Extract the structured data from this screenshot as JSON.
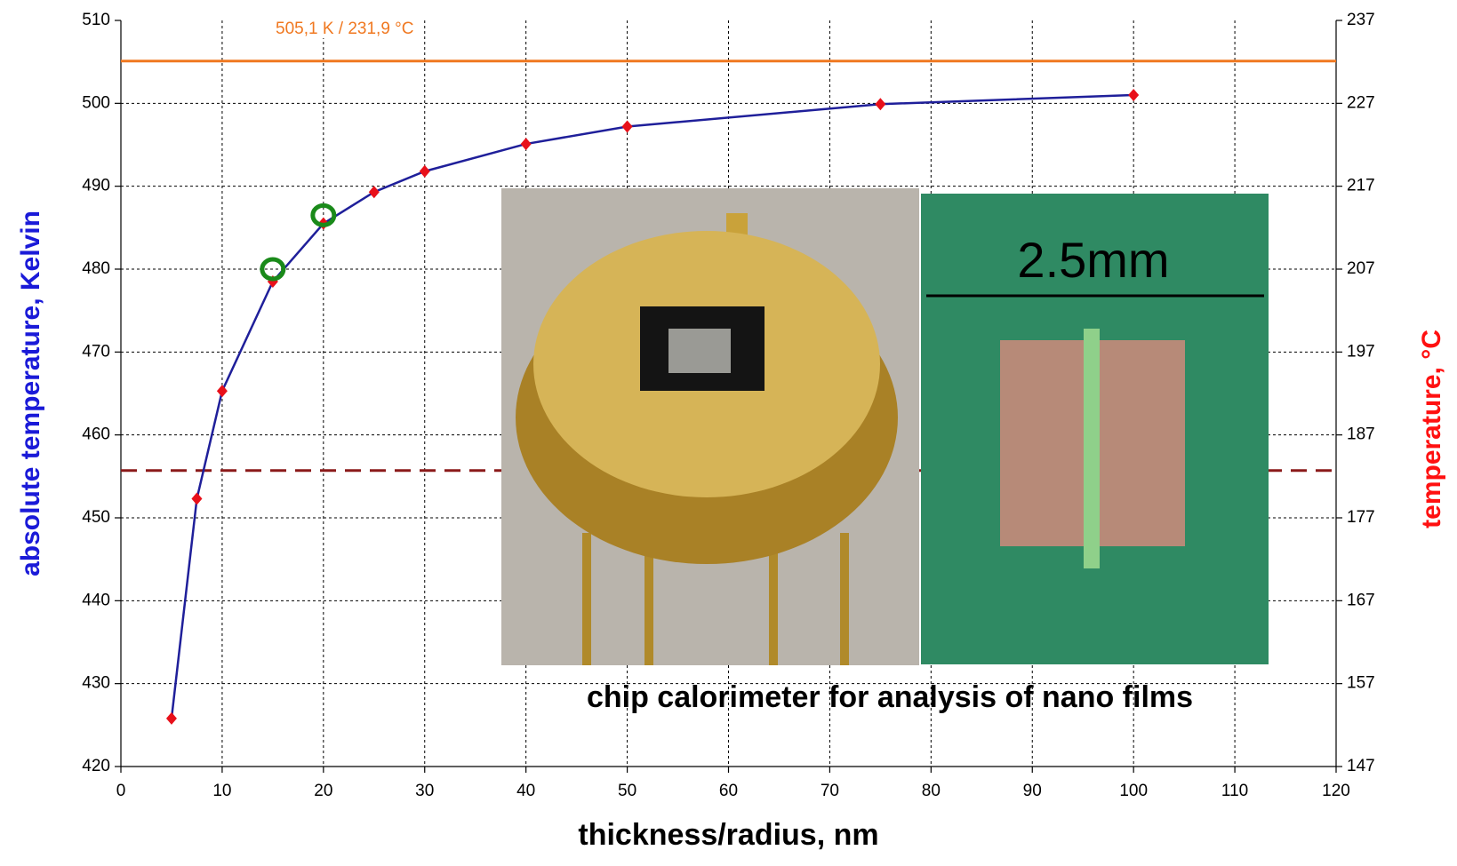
{
  "chart_data": {
    "type": "line",
    "x_label": "thickness/radius, nm",
    "y_label": "absolute temperature, Kelvin",
    "y2_label": "temperature, °C",
    "x": [
      5,
      7.5,
      10,
      15,
      20,
      25,
      30,
      40,
      50,
      75,
      100
    ],
    "values": [
      425.8,
      452.3,
      465.3,
      478.5,
      485.5,
      489.3,
      491.8,
      495.1,
      497.2,
      499.9,
      501
    ],
    "color": "#1f1f9a",
    "marker_color": "#e8101a",
    "highlight": {
      "x": [
        15,
        20
      ],
      "values": [
        480,
        486.5
      ],
      "color": "#1a8a1a"
    },
    "reference_lines": [
      {
        "value": 505.1,
        "label": "505,1 K / 231,9 °C",
        "color": "#f07820",
        "dashed": false
      },
      {
        "value": 455.7,
        "color": "#8b1a1a",
        "dashed": true
      }
    ],
    "xlim": [
      0,
      120
    ],
    "xticks": [
      0,
      10,
      20,
      30,
      40,
      50,
      60,
      70,
      80,
      90,
      100,
      110,
      120
    ],
    "ylim": [
      420,
      510
    ],
    "yticks": [
      420,
      430,
      440,
      450,
      460,
      470,
      480,
      490,
      500,
      510
    ],
    "y2lim": [
      147,
      237
    ],
    "y2ticks": [
      147,
      157,
      167,
      177,
      187,
      197,
      207,
      217,
      227,
      237
    ],
    "grid": true,
    "inset": {
      "scale_label": "2.5mm",
      "caption": "chip calorimeter for analysis of nano films"
    }
  }
}
